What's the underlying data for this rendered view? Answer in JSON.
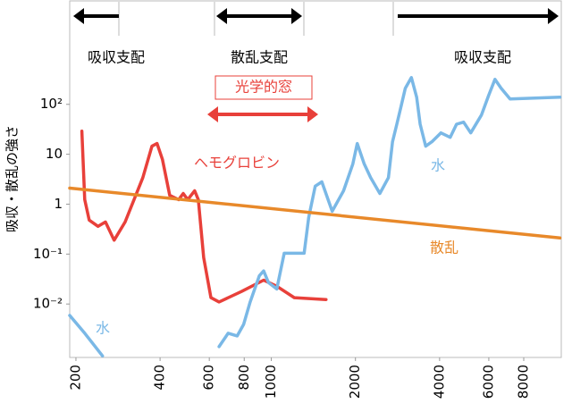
{
  "chart_data": {
    "type": "line",
    "ylabel": "吸収・散乱の強さ",
    "annotations": [
      "吸収支配",
      "散乱支配",
      "吸収支配",
      "光学的窓"
    ],
    "xscale": "log",
    "yscale": "log",
    "xlim": [
      190,
      10900
    ],
    "ylim": [
      0.00085,
      12300
    ],
    "xticks": [
      200,
      400,
      600,
      800,
      1000,
      2000,
      4000,
      6000,
      8000
    ],
    "yticks": [
      {
        "value": 100,
        "label": "10²"
      },
      10,
      1,
      {
        "value": 0.1,
        "label": "10⁻¹"
      },
      {
        "value": 0.01,
        "label": "10⁻²"
      }
    ],
    "series": [
      {
        "name": "ヘモグロビン",
        "color": "#e8403a",
        "x": [
          210,
          215,
          223,
          240,
          255,
          274,
          300,
          347,
          374,
          390,
          408,
          433,
          466,
          484,
          502,
          532,
          548,
          573,
          608,
          650,
          782,
          939,
          1046,
          1209,
          1570
        ],
        "values": [
          29,
          1.23,
          0.48,
          0.36,
          0.44,
          0.19,
          0.44,
          3.4,
          14.5,
          16.4,
          7.8,
          1.5,
          1.23,
          1.64,
          1.23,
          1.85,
          1.23,
          0.085,
          0.0134,
          0.011,
          0.0178,
          0.03,
          0.0227,
          0.0134,
          0.0123
        ]
      },
      {
        "name": "水",
        "color": "#7ab8e6",
        "x": [
          190,
          215,
          249
        ],
        "values": [
          0.0059,
          0.0026,
          0.00091
        ]
      },
      {
        "name": "水",
        "color": "#7ab8e6",
        "x": [
          650,
          701,
          755,
          796,
          840,
          906,
          939,
          976,
          1046,
          1112,
          1311,
          1361,
          1436,
          1516,
          1652,
          1814,
          1957,
          2030,
          2149,
          2267,
          2445,
          2624,
          2715,
          2812,
          2913,
          3016,
          3170,
          3312,
          3407,
          3568,
          3756,
          4043,
          4366,
          4598,
          4876,
          5170,
          5647,
          5990,
          6310,
          6640,
          7150,
          10780
        ],
        "values": [
          0.0014,
          0.0026,
          0.0023,
          0.0039,
          0.011,
          0.037,
          0.046,
          0.027,
          0.02,
          0.104,
          0.104,
          0.54,
          2.3,
          2.8,
          0.72,
          1.85,
          6.4,
          16.4,
          6.4,
          3.4,
          1.64,
          3.4,
          17.8,
          40,
          92,
          210,
          343,
          139,
          40,
          14.5,
          17.8,
          26.8,
          21.8,
          40,
          44,
          26.8,
          61,
          150,
          316,
          210,
          128,
          139
        ]
      },
      {
        "name": "散乱",
        "color": "#e8892a",
        "x": [
          190,
          10780
        ],
        "values": [
          2.1,
          0.21
        ]
      }
    ]
  }
}
